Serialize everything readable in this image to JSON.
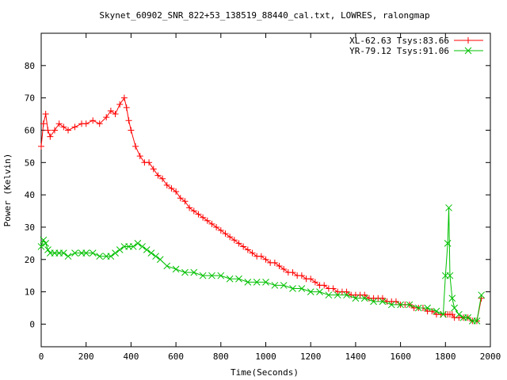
{
  "chart_data": {
    "type": "scatter",
    "title": "Skynet_60902_SNR_822+53_138519_88440_cal.txt, LOWRES, ralongmap",
    "xlabel": "Time(Seconds)",
    "ylabel": "Power (Kelvin)",
    "xlim": [
      0,
      2000
    ],
    "ylim": [
      -7,
      90
    ],
    "x_ticks": [
      0,
      200,
      400,
      600,
      800,
      1000,
      1200,
      1400,
      1600,
      1800,
      2000
    ],
    "y_ticks": [
      0,
      10,
      20,
      30,
      40,
      50,
      60,
      70,
      80
    ],
    "grid": false,
    "legend_position": "top-right",
    "series": [
      {
        "name": "XL-62.63 Tsys:83.66",
        "color": "#ff0000",
        "marker": "plus",
        "x": [
          0,
          10,
          20,
          30,
          40,
          60,
          80,
          100,
          120,
          150,
          180,
          200,
          230,
          260,
          290,
          310,
          330,
          350,
          370,
          380,
          390,
          400,
          420,
          440,
          460,
          480,
          500,
          520,
          540,
          560,
          580,
          600,
          620,
          640,
          660,
          680,
          700,
          720,
          740,
          760,
          780,
          800,
          820,
          840,
          860,
          880,
          900,
          920,
          940,
          960,
          980,
          1000,
          1020,
          1040,
          1060,
          1080,
          1100,
          1120,
          1140,
          1160,
          1180,
          1200,
          1220,
          1240,
          1260,
          1280,
          1300,
          1320,
          1340,
          1360,
          1380,
          1400,
          1420,
          1440,
          1460,
          1480,
          1500,
          1520,
          1540,
          1560,
          1580,
          1600,
          1620,
          1640,
          1660,
          1680,
          1700,
          1720,
          1740,
          1760,
          1780,
          1800,
          1810,
          1820,
          1830,
          1840,
          1860,
          1880,
          1900,
          1920,
          1940,
          1960
        ],
        "y": [
          55,
          62,
          65,
          60,
          58,
          60,
          62,
          61,
          60,
          61,
          62,
          62,
          63,
          62,
          64,
          66,
          65,
          68,
          70,
          67,
          63,
          60,
          55,
          52,
          50,
          50,
          48,
          46,
          45,
          43,
          42,
          41,
          39,
          38,
          36,
          35,
          34,
          33,
          32,
          31,
          30,
          29,
          28,
          27,
          26,
          25,
          24,
          23,
          22,
          21,
          21,
          20,
          19,
          19,
          18,
          17,
          16,
          16,
          15,
          15,
          14,
          14,
          13,
          12,
          12,
          11,
          11,
          10,
          10,
          10,
          9,
          9,
          9,
          9,
          8,
          8,
          8,
          8,
          7,
          7,
          7,
          6,
          6,
          6,
          5,
          5,
          5,
          4,
          4,
          3,
          3,
          3,
          3,
          3,
          3,
          2,
          2,
          2,
          2,
          1,
          1,
          8
        ]
      },
      {
        "name": "YR-79.12 Tsys:91.06",
        "color": "#00c000",
        "marker": "cross",
        "x": [
          0,
          10,
          20,
          30,
          40,
          60,
          80,
          100,
          120,
          150,
          180,
          200,
          230,
          260,
          290,
          310,
          330,
          350,
          370,
          390,
          410,
          430,
          450,
          470,
          490,
          510,
          530,
          560,
          600,
          640,
          680,
          720,
          760,
          800,
          840,
          880,
          920,
          960,
          1000,
          1040,
          1080,
          1120,
          1160,
          1200,
          1240,
          1280,
          1320,
          1360,
          1400,
          1440,
          1480,
          1520,
          1560,
          1600,
          1640,
          1680,
          1720,
          1760,
          1790,
          1800,
          1810,
          1815,
          1820,
          1830,
          1840,
          1860,
          1880,
          1900,
          1920,
          1940,
          1960
        ],
        "y": [
          24,
          26,
          25,
          23,
          22,
          22,
          22,
          22,
          21,
          22,
          22,
          22,
          22,
          21,
          21,
          21,
          22,
          23,
          24,
          24,
          24,
          25,
          24,
          23,
          22,
          21,
          20,
          18,
          17,
          16,
          16,
          15,
          15,
          15,
          14,
          14,
          13,
          13,
          13,
          12,
          12,
          11,
          11,
          10,
          10,
          9,
          9,
          9,
          8,
          8,
          7,
          7,
          6,
          6,
          6,
          5,
          5,
          4,
          3,
          15,
          25,
          36,
          15,
          8,
          5,
          3,
          2,
          2,
          1,
          1,
          9
        ]
      }
    ]
  }
}
